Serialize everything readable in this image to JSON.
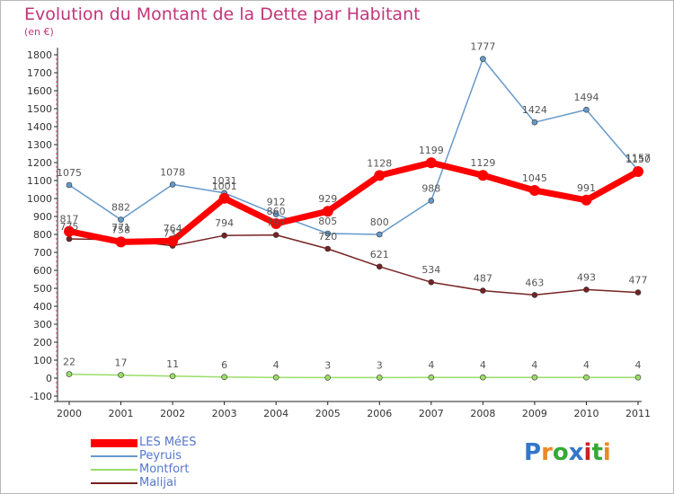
{
  "chart_data": {
    "type": "line",
    "title": "Evolution du Montant de la Dette par Habitant",
    "subtitle": "(en €)",
    "x": [
      "2000",
      "2001",
      "2002",
      "2003",
      "2004",
      "2005",
      "2006",
      "2007",
      "2008",
      "2009",
      "2010",
      "2011"
    ],
    "ylim": [
      -100,
      1800
    ],
    "yticks": [
      -100,
      0,
      100,
      200,
      300,
      400,
      500,
      600,
      700,
      800,
      900,
      1000,
      1100,
      1200,
      1300,
      1400,
      1500,
      1600,
      1700,
      1800
    ],
    "grid": false,
    "legend_position": "bottom-left",
    "series": [
      {
        "name": "LES MéES",
        "color": "#ff0000",
        "values": [
          817,
          758,
          764,
          1001,
          860,
          929,
          1128,
          1199,
          1129,
          1045,
          991,
          1150
        ]
      },
      {
        "name": "Peyruis",
        "color": "#6699cc",
        "values": [
          1075,
          882,
          1078,
          1031,
          912,
          805,
          800,
          988,
          1777,
          1424,
          1494,
          1157
        ]
      },
      {
        "name": "Montfort",
        "color": "#99dd66",
        "values": [
          22,
          17,
          11,
          6,
          4,
          3,
          3,
          4,
          4,
          4,
          4,
          4
        ]
      },
      {
        "name": "Malijai",
        "color": "#772222",
        "values": [
          775,
          771,
          737,
          794,
          797,
          720,
          621,
          534,
          487,
          463,
          493,
          477
        ]
      }
    ]
  },
  "logo": {
    "text": "Proxiti",
    "colors": [
      "#3377cc",
      "#ee8822",
      "#33aa33",
      "#3377cc",
      "#cc2222",
      "#33aa33",
      "#ee8822"
    ]
  }
}
